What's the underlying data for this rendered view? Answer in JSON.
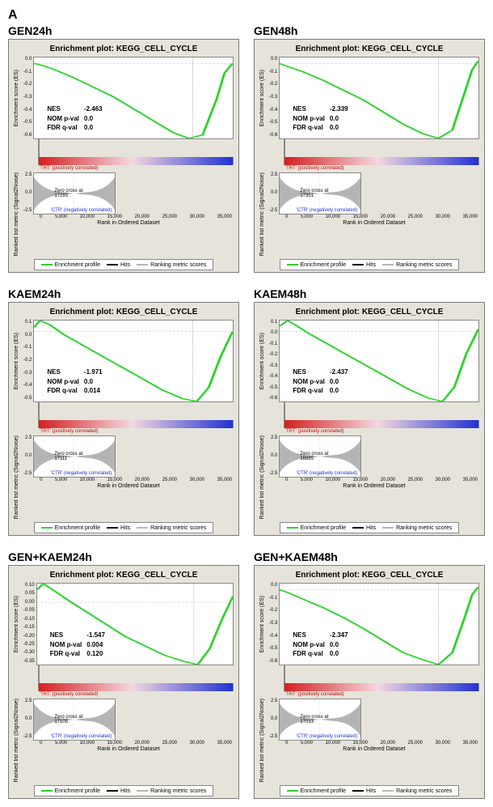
{
  "figure_label": "A",
  "panel_title": "Enrichment plot: KEGG_CELL_CYCLE",
  "ylabel_top": "Enrichment score (ES)",
  "ylabel_bottom": "Ranked list metric (Signal2Noise)",
  "xaxis_label": "Rank in Ordered Dataset",
  "xticks": [
    "0",
    "5,000",
    "10,000",
    "15,000",
    "20,000",
    "25,000",
    "30,000",
    "35,000"
  ],
  "corr_pos": "'TRT' (positively correlated)",
  "corr_neg": "'CTR' (negatively correlated)",
  "legend": {
    "profile": "Enrichment profile",
    "hits": "Hits",
    "rank": "Ranking metric scores"
  },
  "colors": {
    "line": "#2bd42b",
    "panel_bg": "#e6e4da",
    "plot_bg": "#ffffff",
    "border": "#888888",
    "hit": "#3a3a3a",
    "grad_start": "#d32020",
    "grad_mid": "#f5d7e0",
    "grad_end": "#2032d3",
    "rank_fill": "#b5b5b5",
    "dashed": "#9a9a9a"
  },
  "panels": [
    {
      "title": "GEN24h",
      "stats": {
        "NES": "-2.463",
        "NOM p-val": "0.0",
        "FDR q-val": "0.0"
      },
      "zero_cross": "Zero cross at 17293",
      "es_yticks": [
        "0.0",
        "-0.1",
        "-0.2",
        "-0.3",
        "-0.4",
        "-0.5",
        "-0.6"
      ],
      "curve": [
        [
          0,
          0
        ],
        [
          5,
          -2
        ],
        [
          10,
          -5
        ],
        [
          20,
          -12
        ],
        [
          30,
          -20
        ],
        [
          40,
          -28
        ],
        [
          50,
          -38
        ],
        [
          60,
          -48
        ],
        [
          70,
          -58
        ],
        [
          78,
          -63
        ],
        [
          85,
          -60
        ],
        [
          92,
          -30
        ],
        [
          96,
          -8
        ],
        [
          100,
          0
        ]
      ],
      "hit_zones": [
        [
          55,
          100,
          "dense"
        ],
        [
          20,
          55,
          "sparse"
        ],
        [
          0,
          20,
          "few"
        ]
      ]
    },
    {
      "title": "GEN48h",
      "stats": {
        "NES": "-2.339",
        "NOM p-val": "0.0",
        "FDR q-val": "0.0"
      },
      "zero_cross": "Zero cross at 17351",
      "es_yticks": [
        "0.0",
        "-0.1",
        "-0.2",
        "-0.3",
        "-0.4",
        "-0.5",
        "-0.6"
      ],
      "curve": [
        [
          0,
          0
        ],
        [
          5,
          -3
        ],
        [
          12,
          -7
        ],
        [
          22,
          -14
        ],
        [
          32,
          -22
        ],
        [
          42,
          -30
        ],
        [
          52,
          -40
        ],
        [
          62,
          -50
        ],
        [
          72,
          -58
        ],
        [
          80,
          -62
        ],
        [
          87,
          -55
        ],
        [
          93,
          -25
        ],
        [
          97,
          -5
        ],
        [
          100,
          2
        ]
      ],
      "hit_zones": [
        [
          55,
          100,
          "dense"
        ],
        [
          20,
          55,
          "sparse"
        ],
        [
          0,
          20,
          "few"
        ]
      ]
    },
    {
      "title": "KAEM24h",
      "stats": {
        "NES": "-1.971",
        "NOM p-val": "0.0",
        "FDR q-val": "0.014"
      },
      "zero_cross": "Zero cross at 17111",
      "es_yticks": [
        "0.1",
        "0.0",
        "-0.1",
        "-0.2",
        "-0.3",
        "-0.4",
        "-0.5"
      ],
      "curve": [
        [
          0,
          3
        ],
        [
          3,
          8
        ],
        [
          8,
          5
        ],
        [
          15,
          -2
        ],
        [
          25,
          -10
        ],
        [
          35,
          -18
        ],
        [
          45,
          -26
        ],
        [
          55,
          -34
        ],
        [
          65,
          -42
        ],
        [
          75,
          -48
        ],
        [
          82,
          -50
        ],
        [
          88,
          -40
        ],
        [
          94,
          -18
        ],
        [
          100,
          0
        ]
      ],
      "hit_zones": [
        [
          55,
          100,
          "dense"
        ],
        [
          15,
          55,
          "sparse"
        ],
        [
          0,
          15,
          "few"
        ]
      ]
    },
    {
      "title": "KAEM48h",
      "stats": {
        "NES": "-2.437",
        "NOM p-val": "0.0",
        "FDR q-val": "0.0"
      },
      "zero_cross": "Zero cross at 16885",
      "es_yticks": [
        "0.1",
        "0.0",
        "-0.1",
        "-0.2",
        "-0.3",
        "-0.4",
        "-0.5",
        "-0.6"
      ],
      "curve": [
        [
          0,
          5
        ],
        [
          4,
          10
        ],
        [
          8,
          6
        ],
        [
          15,
          -2
        ],
        [
          25,
          -12
        ],
        [
          35,
          -22
        ],
        [
          45,
          -32
        ],
        [
          55,
          -42
        ],
        [
          65,
          -52
        ],
        [
          75,
          -60
        ],
        [
          82,
          -63
        ],
        [
          88,
          -50
        ],
        [
          94,
          -20
        ],
        [
          100,
          2
        ]
      ],
      "hit_zones": [
        [
          55,
          100,
          "dense"
        ],
        [
          15,
          55,
          "sparse"
        ],
        [
          0,
          15,
          "few"
        ]
      ]
    },
    {
      "title": "GEN+KAEM24h",
      "stats": {
        "NES": "-1.547",
        "NOM p-val": "0.004",
        "FDR q-val": "0.120"
      },
      "zero_cross": "Zero cross at 17105",
      "es_yticks": [
        "0.10",
        "0.05",
        "0.00",
        "-0.05",
        "-0.10",
        "-0.15",
        "-0.20",
        "-0.25",
        "-0.30",
        "-0.35"
      ],
      "curve": [
        [
          0,
          8
        ],
        [
          3,
          12
        ],
        [
          8,
          8
        ],
        [
          15,
          2
        ],
        [
          25,
          -6
        ],
        [
          35,
          -14
        ],
        [
          45,
          -22
        ],
        [
          55,
          -28
        ],
        [
          65,
          -34
        ],
        [
          75,
          -38
        ],
        [
          82,
          -40
        ],
        [
          88,
          -30
        ],
        [
          94,
          -12
        ],
        [
          100,
          4
        ]
      ],
      "hit_zones": [
        [
          50,
          100,
          "dense"
        ],
        [
          15,
          50,
          "sparse"
        ],
        [
          0,
          15,
          "few"
        ]
      ]
    },
    {
      "title": "GEN+KAEM48h",
      "stats": {
        "NES": "-2.347",
        "NOM p-val": "0.0",
        "FDR q-val": "0.0"
      },
      "zero_cross": "Zero cross at 17033",
      "es_yticks": [
        "0.0",
        "-0.1",
        "-0.2",
        "-0.3",
        "-0.4",
        "-0.5",
        "-0.6"
      ],
      "curve": [
        [
          0,
          0
        ],
        [
          5,
          -3
        ],
        [
          12,
          -8
        ],
        [
          22,
          -15
        ],
        [
          32,
          -23
        ],
        [
          42,
          -32
        ],
        [
          52,
          -42
        ],
        [
          62,
          -52
        ],
        [
          72,
          -58
        ],
        [
          80,
          -62
        ],
        [
          87,
          -52
        ],
        [
          93,
          -24
        ],
        [
          97,
          -4
        ],
        [
          100,
          2
        ]
      ],
      "hit_zones": [
        [
          55,
          100,
          "dense"
        ],
        [
          20,
          55,
          "sparse"
        ],
        [
          0,
          20,
          "few"
        ]
      ]
    }
  ]
}
